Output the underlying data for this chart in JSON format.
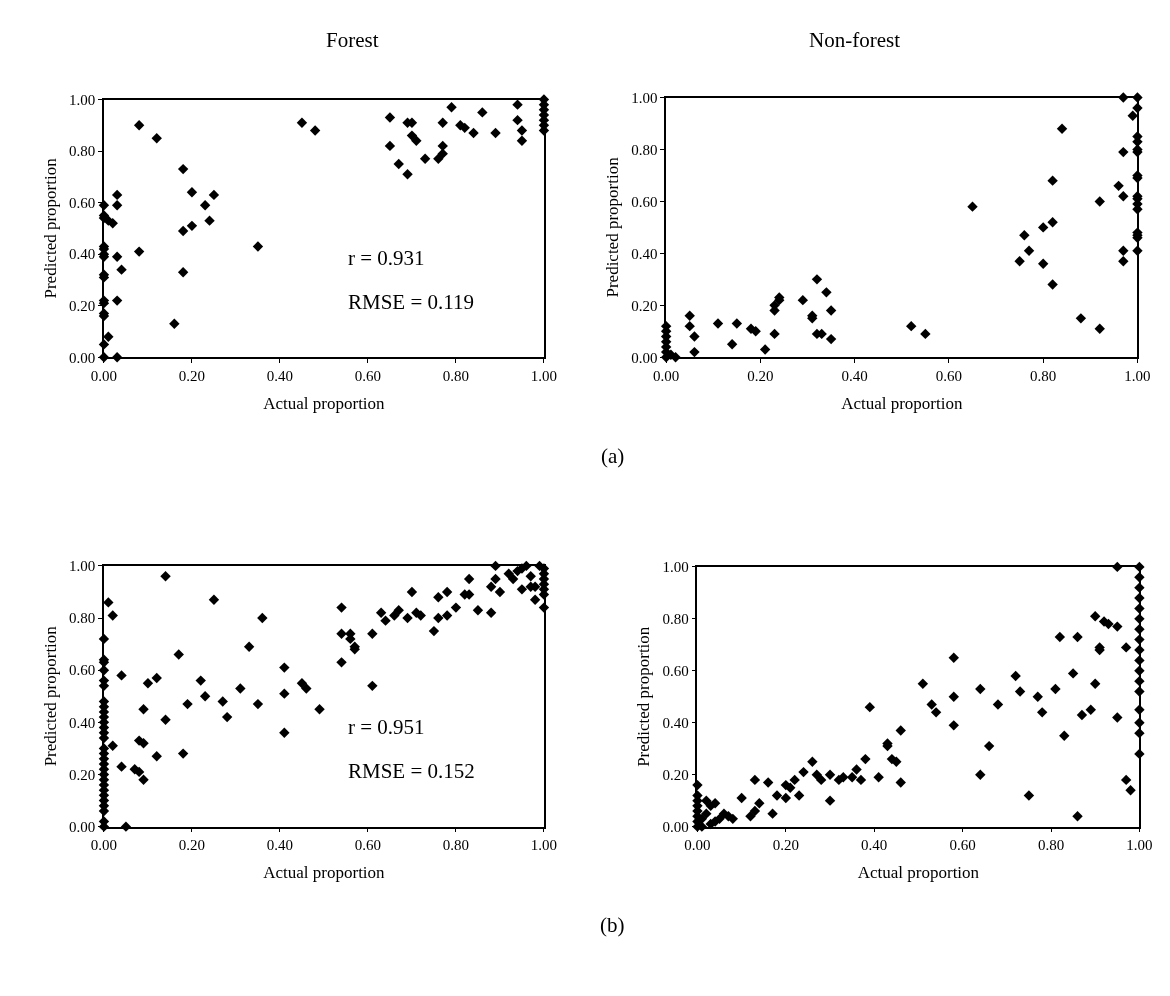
{
  "chart_data": [
    {
      "type": "scatter",
      "title": "Forest",
      "xlabel": "Actual proportion",
      "ylabel": "Predicted proportion",
      "marker": "diamond",
      "xlim": [
        0,
        1
      ],
      "ylim": [
        0,
        1
      ],
      "xticks": [
        {
          "value": 0,
          "label": "0.00"
        },
        {
          "value": 0.2,
          "label": "0.20"
        },
        {
          "value": 0.4,
          "label": "0.40"
        },
        {
          "value": 0.6,
          "label": "0.60"
        },
        {
          "value": 0.8,
          "label": "0.80"
        },
        {
          "value": 1,
          "label": "1.00"
        }
      ],
      "yticks": [
        {
          "value": 0,
          "label": "0.00"
        },
        {
          "value": 0.2,
          "label": "0.20"
        },
        {
          "value": 0.4,
          "label": "0.40"
        },
        {
          "value": 0.6,
          "label": "0.60"
        },
        {
          "value": 0.8,
          "label": "0.80"
        },
        {
          "value": 1,
          "label": "1.00"
        }
      ],
      "annotations": [
        "r = 0.931",
        "RMSE = 0.119"
      ],
      "series": [
        {
          "color": "#000000",
          "x": [
            0,
            0,
            0,
            0.01,
            0.02,
            0,
            0,
            0,
            0,
            0,
            0,
            0,
            0,
            0,
            0,
            0,
            0,
            0.01,
            0.03,
            0.03,
            0.03,
            0.04,
            0.03,
            0.03,
            0.08,
            0.08,
            0.12,
            0.16,
            0.18,
            0.18,
            0.18,
            0.2,
            0.2,
            0.23,
            0.24,
            0.25,
            0.35,
            0.45,
            0.48,
            0.65,
            0.65,
            0.67,
            0.69,
            0.69,
            0.7,
            0.7,
            0.71,
            0.73,
            0.76,
            0.77,
            0.77,
            0.77,
            0.79,
            0.81,
            0.82,
            0.84,
            0.86,
            0.89,
            0.94,
            0.94,
            0.95,
            0.95,
            1,
            1,
            1,
            1,
            1,
            1,
            1
          ],
          "values": [
            0.59,
            0.55,
            0.54,
            0.53,
            0.52,
            0.43,
            0.42,
            0.4,
            0.39,
            0.32,
            0.31,
            0.22,
            0.21,
            0.17,
            0.16,
            0.05,
            0,
            0.08,
            0.63,
            0.59,
            0.39,
            0.34,
            0.22,
            0,
            0.9,
            0.41,
            0.85,
            0.13,
            0.73,
            0.49,
            0.33,
            0.64,
            0.51,
            0.59,
            0.53,
            0.63,
            0.43,
            0.91,
            0.88,
            0.93,
            0.82,
            0.75,
            0.71,
            0.91,
            0.91,
            0.86,
            0.84,
            0.77,
            0.77,
            0.79,
            0.82,
            0.91,
            0.97,
            0.9,
            0.89,
            0.87,
            0.95,
            0.87,
            0.98,
            0.92,
            0.88,
            0.84,
            1,
            0.98,
            0.96,
            0.94,
            0.92,
            0.9,
            0.88
          ]
        }
      ]
    },
    {
      "type": "scatter",
      "title": "Non-forest",
      "xlabel": "Actual proportion",
      "ylabel": "Predicted proportion",
      "marker": "diamond",
      "xlim": [
        0,
        1
      ],
      "ylim": [
        0,
        1
      ],
      "xticks": [
        {
          "value": 0,
          "label": "0.00"
        },
        {
          "value": 0.2,
          "label": "0.20"
        },
        {
          "value": 0.4,
          "label": "0.40"
        },
        {
          "value": 0.6,
          "label": "0.60"
        },
        {
          "value": 0.8,
          "label": "0.80"
        },
        {
          "value": 1,
          "label": "1.00"
        }
      ],
      "yticks": [
        {
          "value": 0,
          "label": "0.00"
        },
        {
          "value": 0.2,
          "label": "0.20"
        },
        {
          "value": 0.4,
          "label": "0.40"
        },
        {
          "value": 0.6,
          "label": "0.60"
        },
        {
          "value": 0.8,
          "label": "0.80"
        },
        {
          "value": 1,
          "label": "1.00"
        }
      ],
      "annotations": [
        "(a)"
      ],
      "series": [
        {
          "color": "#000000",
          "x": [
            0,
            0,
            0,
            0,
            0,
            0,
            0,
            0.01,
            0.02,
            0.05,
            0.05,
            0.06,
            0.06,
            0.11,
            0.14,
            0.15,
            0.18,
            0.19,
            0.21,
            0.23,
            0.23,
            0.23,
            0.24,
            0.24,
            0.29,
            0.31,
            0.31,
            0.32,
            0.32,
            0.33,
            0.34,
            0.35,
            0.35,
            0.52,
            0.55,
            0.65,
            0.75,
            0.76,
            0.77,
            0.8,
            0.8,
            0.82,
            0.82,
            0.82,
            0.84,
            0.88,
            0.92,
            0.92,
            0.96,
            0.97,
            0.97,
            0.97,
            0.97,
            0.97,
            0.99,
            1,
            1,
            1,
            1,
            1,
            1,
            1,
            1,
            1,
            1,
            1,
            1,
            1,
            1,
            1,
            1
          ],
          "values": [
            0.12,
            0.1,
            0.08,
            0.06,
            0.04,
            0.02,
            0,
            0.01,
            0,
            0.16,
            0.12,
            0.08,
            0.02,
            0.13,
            0.05,
            0.13,
            0.11,
            0.1,
            0.03,
            0.2,
            0.18,
            0.09,
            0.22,
            0.23,
            0.22,
            0.16,
            0.15,
            0.09,
            0.3,
            0.09,
            0.25,
            0.18,
            0.07,
            0.12,
            0.09,
            0.58,
            0.37,
            0.47,
            0.41,
            0.36,
            0.5,
            0.52,
            0.28,
            0.68,
            0.88,
            0.15,
            0.6,
            0.11,
            0.66,
            0.79,
            0.62,
            0.41,
            0.37,
            1.0,
            0.93,
            1,
            0.96,
            0.85,
            0.83,
            0.8,
            0.79,
            0.7,
            0.69,
            0.62,
            0.61,
            0.59,
            0.57,
            0.48,
            0.47,
            0.46,
            0.41
          ]
        }
      ]
    },
    {
      "type": "scatter",
      "xlabel": "Actual proportion",
      "ylabel": "Predicted proportion",
      "marker": "diamond",
      "xlim": [
        0,
        1
      ],
      "ylim": [
        0,
        1
      ],
      "xticks": [
        {
          "value": 0,
          "label": "0.00"
        },
        {
          "value": 0.2,
          "label": "0.20"
        },
        {
          "value": 0.4,
          "label": "0.40"
        },
        {
          "value": 0.6,
          "label": "0.60"
        },
        {
          "value": 0.8,
          "label": "0.80"
        },
        {
          "value": 1,
          "label": "1.00"
        }
      ],
      "yticks": [
        {
          "value": 0,
          "label": "0.00"
        },
        {
          "value": 0.2,
          "label": "0.20"
        },
        {
          "value": 0.4,
          "label": "0.40"
        },
        {
          "value": 0.6,
          "label": "0.60"
        },
        {
          "value": 0.8,
          "label": "0.80"
        },
        {
          "value": 1,
          "label": "1.00"
        }
      ],
      "annotations": [
        "r = 0.951",
        "RMSE = 0.152"
      ],
      "series": [
        {
          "color": "#000000",
          "x": [
            0,
            0,
            0,
            0,
            0,
            0,
            0,
            0,
            0,
            0,
            0,
            0,
            0,
            0,
            0,
            0,
            0,
            0,
            0,
            0,
            0,
            0,
            0,
            0,
            0,
            0,
            0,
            0,
            0,
            0.01,
            0.02,
            0.02,
            0.04,
            0.04,
            0.05,
            0.07,
            0.08,
            0.08,
            0.09,
            0.09,
            0.09,
            0.1,
            0.12,
            0.12,
            0.14,
            0.14,
            0.17,
            0.18,
            0.19,
            0.22,
            0.23,
            0.25,
            0.27,
            0.28,
            0.31,
            0.33,
            0.35,
            0.36,
            0.41,
            0.41,
            0.41,
            0.45,
            0.46,
            0.49,
            0.54,
            0.54,
            0.54,
            0.56,
            0.56,
            0.57,
            0.57,
            0.61,
            0.61,
            0.63,
            0.64,
            0.66,
            0.67,
            0.69,
            0.7,
            0.71,
            0.72,
            0.75,
            0.76,
            0.76,
            0.78,
            0.78,
            0.8,
            0.82,
            0.83,
            0.83,
            0.85,
            0.88,
            0.88,
            0.89,
            0.89,
            0.9,
            0.92,
            0.93,
            0.94,
            0.95,
            0.95,
            0.96,
            0.97,
            0.97,
            0.98,
            0.98,
            0.99,
            1,
            1,
            1,
            1,
            1,
            1,
            1
          ],
          "values": [
            0.72,
            0.64,
            0.63,
            0.6,
            0.56,
            0.54,
            0.48,
            0.46,
            0.44,
            0.42,
            0.4,
            0.38,
            0.36,
            0.34,
            0.3,
            0.28,
            0.26,
            0.24,
            0.22,
            0.2,
            0.18,
            0.16,
            0.14,
            0.12,
            0.1,
            0.08,
            0.06,
            0.02,
            0,
            0.86,
            0.81,
            0.31,
            0.58,
            0.23,
            0,
            0.22,
            0.33,
            0.21,
            0.32,
            0.45,
            0.18,
            0.55,
            0.57,
            0.27,
            0.96,
            0.41,
            0.66,
            0.28,
            0.47,
            0.56,
            0.5,
            0.87,
            0.48,
            0.42,
            0.53,
            0.69,
            0.47,
            0.8,
            0.61,
            0.51,
            0.36,
            0.55,
            0.53,
            0.45,
            0.84,
            0.74,
            0.63,
            0.74,
            0.72,
            0.69,
            0.68,
            0.74,
            0.54,
            0.82,
            0.79,
            0.81,
            0.83,
            0.8,
            0.9,
            0.82,
            0.81,
            0.75,
            0.88,
            0.8,
            0.9,
            0.81,
            0.84,
            0.89,
            0.95,
            0.89,
            0.83,
            0.92,
            0.82,
            0.95,
            1.0,
            0.9,
            0.97,
            0.95,
            0.98,
            0.99,
            0.91,
            1.0,
            0.92,
            0.96,
            0.87,
            0.92,
            1.0,
            0.99,
            0.97,
            0.95,
            0.93,
            0.91,
            0.89,
            0.84
          ]
        }
      ]
    },
    {
      "type": "scatter",
      "xlabel": "Actual proportion",
      "ylabel": "Predicted proportion",
      "marker": "diamond",
      "xlim": [
        0,
        1
      ],
      "ylim": [
        0,
        1
      ],
      "xticks": [
        {
          "value": 0,
          "label": "0.00"
        },
        {
          "value": 0.2,
          "label": "0.20"
        },
        {
          "value": 0.4,
          "label": "0.40"
        },
        {
          "value": 0.6,
          "label": "0.60"
        },
        {
          "value": 0.8,
          "label": "0.80"
        },
        {
          "value": 1,
          "label": "1.00"
        }
      ],
      "yticks": [
        {
          "value": 0,
          "label": "0.00"
        },
        {
          "value": 0.2,
          "label": "0.20"
        },
        {
          "value": 0.4,
          "label": "0.40"
        },
        {
          "value": 0.6,
          "label": "0.60"
        },
        {
          "value": 0.8,
          "label": "0.80"
        },
        {
          "value": 1,
          "label": "1.00"
        }
      ],
      "annotations": [
        "(b)"
      ],
      "series": [
        {
          "color": "#000000",
          "x": [
            0,
            0,
            0,
            0,
            0,
            0,
            0,
            0,
            0.01,
            0.01,
            0.02,
            0.02,
            0.03,
            0.03,
            0.04,
            0.04,
            0.05,
            0.06,
            0.07,
            0.08,
            0.1,
            0.12,
            0.13,
            0.13,
            0.14,
            0.16,
            0.17,
            0.18,
            0.2,
            0.2,
            0.21,
            0.22,
            0.23,
            0.24,
            0.26,
            0.27,
            0.28,
            0.3,
            0.3,
            0.32,
            0.33,
            0.35,
            0.36,
            0.37,
            0.38,
            0.39,
            0.41,
            0.43,
            0.43,
            0.44,
            0.45,
            0.46,
            0.46,
            0.51,
            0.53,
            0.54,
            0.58,
            0.58,
            0.58,
            0.64,
            0.64,
            0.66,
            0.68,
            0.72,
            0.73,
            0.75,
            0.77,
            0.78,
            0.81,
            0.82,
            0.83,
            0.85,
            0.86,
            0.86,
            0.87,
            0.89,
            0.9,
            0.9,
            0.91,
            0.91,
            0.92,
            0.93,
            0.95,
            0.95,
            0.95,
            0.97,
            0.97,
            0.98,
            1,
            1,
            1,
            1,
            1,
            1,
            1,
            1,
            1,
            1,
            1,
            1,
            1,
            1,
            1,
            1,
            1
          ],
          "values": [
            0.16,
            0.12,
            0.1,
            0.08,
            0.06,
            0.04,
            0.02,
            0,
            0.03,
            0,
            0.05,
            0.1,
            0.08,
            0.01,
            0.09,
            0.02,
            0.03,
            0.05,
            0.04,
            0.03,
            0.11,
            0.04,
            0.18,
            0.06,
            0.09,
            0.17,
            0.05,
            0.12,
            0.11,
            0.16,
            0.15,
            0.18,
            0.12,
            0.21,
            0.25,
            0.2,
            0.18,
            0.1,
            0.2,
            0.18,
            0.19,
            0.19,
            0.22,
            0.18,
            0.26,
            0.46,
            0.19,
            0.32,
            0.31,
            0.26,
            0.25,
            0.37,
            0.17,
            0.55,
            0.47,
            0.44,
            0.5,
            0.39,
            0.65,
            0.53,
            0.2,
            0.31,
            0.47,
            0.58,
            0.52,
            0.12,
            0.5,
            0.44,
            0.53,
            0.73,
            0.35,
            0.59,
            0.04,
            0.73,
            0.43,
            0.45,
            0.55,
            0.81,
            0.69,
            0.68,
            0.79,
            0.78,
            0.42,
            1.0,
            0.77,
            0.69,
            0.18,
            0.14,
            1,
            0.96,
            0.92,
            0.88,
            0.84,
            0.8,
            0.76,
            0.72,
            0.68,
            0.64,
            0.6,
            0.56,
            0.52,
            0.45,
            0.4,
            0.36,
            0.28
          ]
        }
      ]
    }
  ]
}
